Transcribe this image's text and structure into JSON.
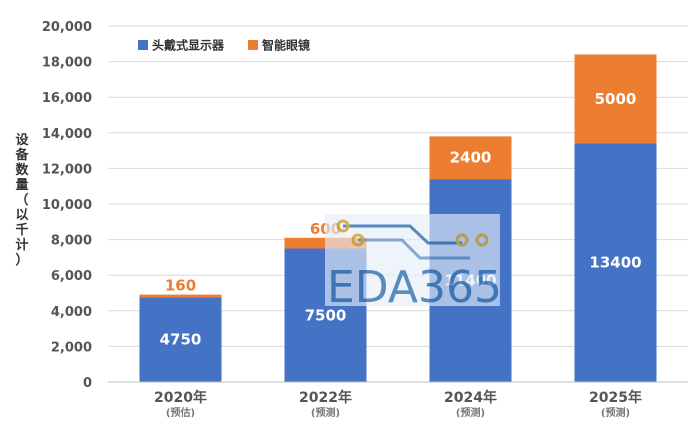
{
  "chart_data": {
    "type": "bar",
    "stacked": true,
    "categories": [
      "2020年",
      "2022年",
      "2024年",
      "2025年"
    ],
    "category_notes": [
      "(预估)",
      "(预测)",
      "(预测)",
      "(预测)"
    ],
    "series": [
      {
        "name": "头戴式显示器",
        "values": [
          4750,
          7500,
          11400,
          13400
        ],
        "color": "#4472C4"
      },
      {
        "name": "智能眼镜",
        "values": [
          160,
          600,
          2400,
          5000
        ],
        "color": "#ED7D31"
      }
    ],
    "data_labels": {
      "s0": [
        "4750",
        "7500",
        "11400",
        "13400"
      ],
      "s1": [
        "160",
        "600",
        "2400",
        "5000"
      ]
    },
    "ylabel": "设备数量（以千计）",
    "ylim": [
      0,
      20000
    ],
    "y_ticks": [
      "0",
      "2,000",
      "4,000",
      "6,000",
      "8,000",
      "10,000",
      "12,000",
      "14,000",
      "16,000",
      "18,000",
      "20,000"
    ],
    "grid": true,
    "legend_position": "top-left"
  },
  "watermark": {
    "text": "EDA365"
  }
}
